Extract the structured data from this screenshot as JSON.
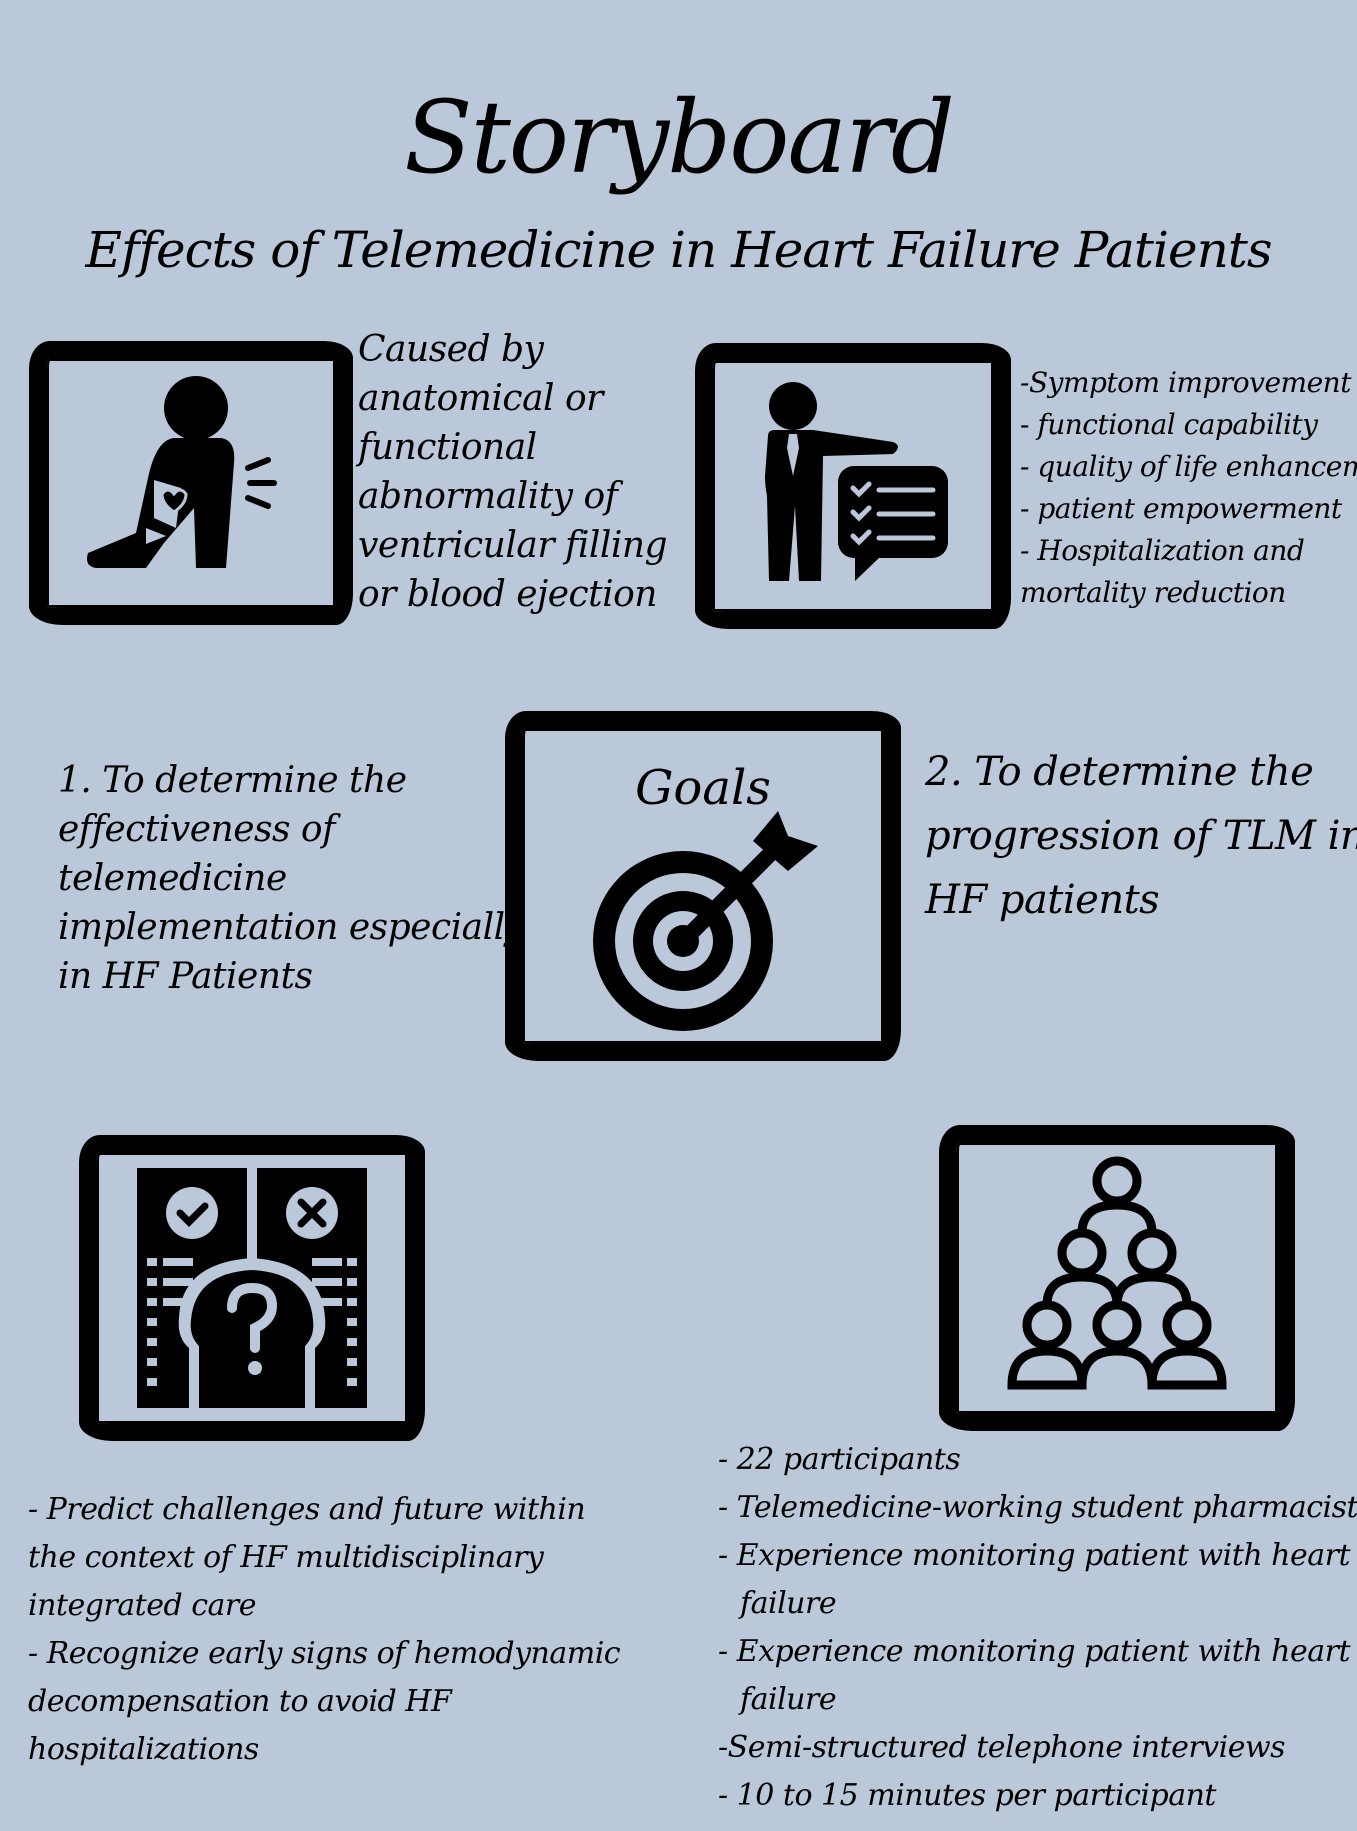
{
  "header": {
    "title": "Storyboard",
    "subtitle": "Effects of Telemedicine in Heart Failure Patients"
  },
  "panel_heart": {
    "icon": "person-chest-pain-icon",
    "lines": [
      "Caused by",
      "anatomical or",
      "functional",
      "abnormality of",
      "ventricular filling",
      "or blood ejection"
    ]
  },
  "panel_benefits": {
    "icon": "presenter-checklist-icon",
    "lines": [
      "-Symptom improvement",
      "- functional capability",
      "- quality of life enhancement",
      "- patient empowerment",
      "- Hospitalization and",
      "mortality reduction"
    ]
  },
  "panel_goals": {
    "label": "Goals",
    "icon": "target-arrow-icon",
    "left_lines": [
      "1. To determine the",
      "effectiveness of",
      "telemedicine",
      "implementation especially",
      "in HF Patients"
    ],
    "right_lines": [
      "2. To determine the",
      "progression of TLM in",
      "HF patients"
    ]
  },
  "panel_challenges": {
    "icon": "head-question-choices-icon",
    "lines": [
      "- Predict challenges and future within",
      "the context of HF multidisciplinary",
      "integrated care",
      "- Recognize early signs of hemodynamic",
      "decompensation to avoid HF",
      "hospitalizations"
    ]
  },
  "panel_participants": {
    "icon": "people-pyramid-icon",
    "lines": [
      "- 22 participants",
      "- Telemedicine-working student pharmacists",
      "- Experience monitoring patient with heart",
      "failure",
      "- Experience monitoring patient with heart",
      "failure",
      "-Semi-structured telephone interviews",
      "- 10 to 15 minutes per participant"
    ]
  },
  "colors": {
    "background": "#bbc8da",
    "ink": "#000000"
  }
}
